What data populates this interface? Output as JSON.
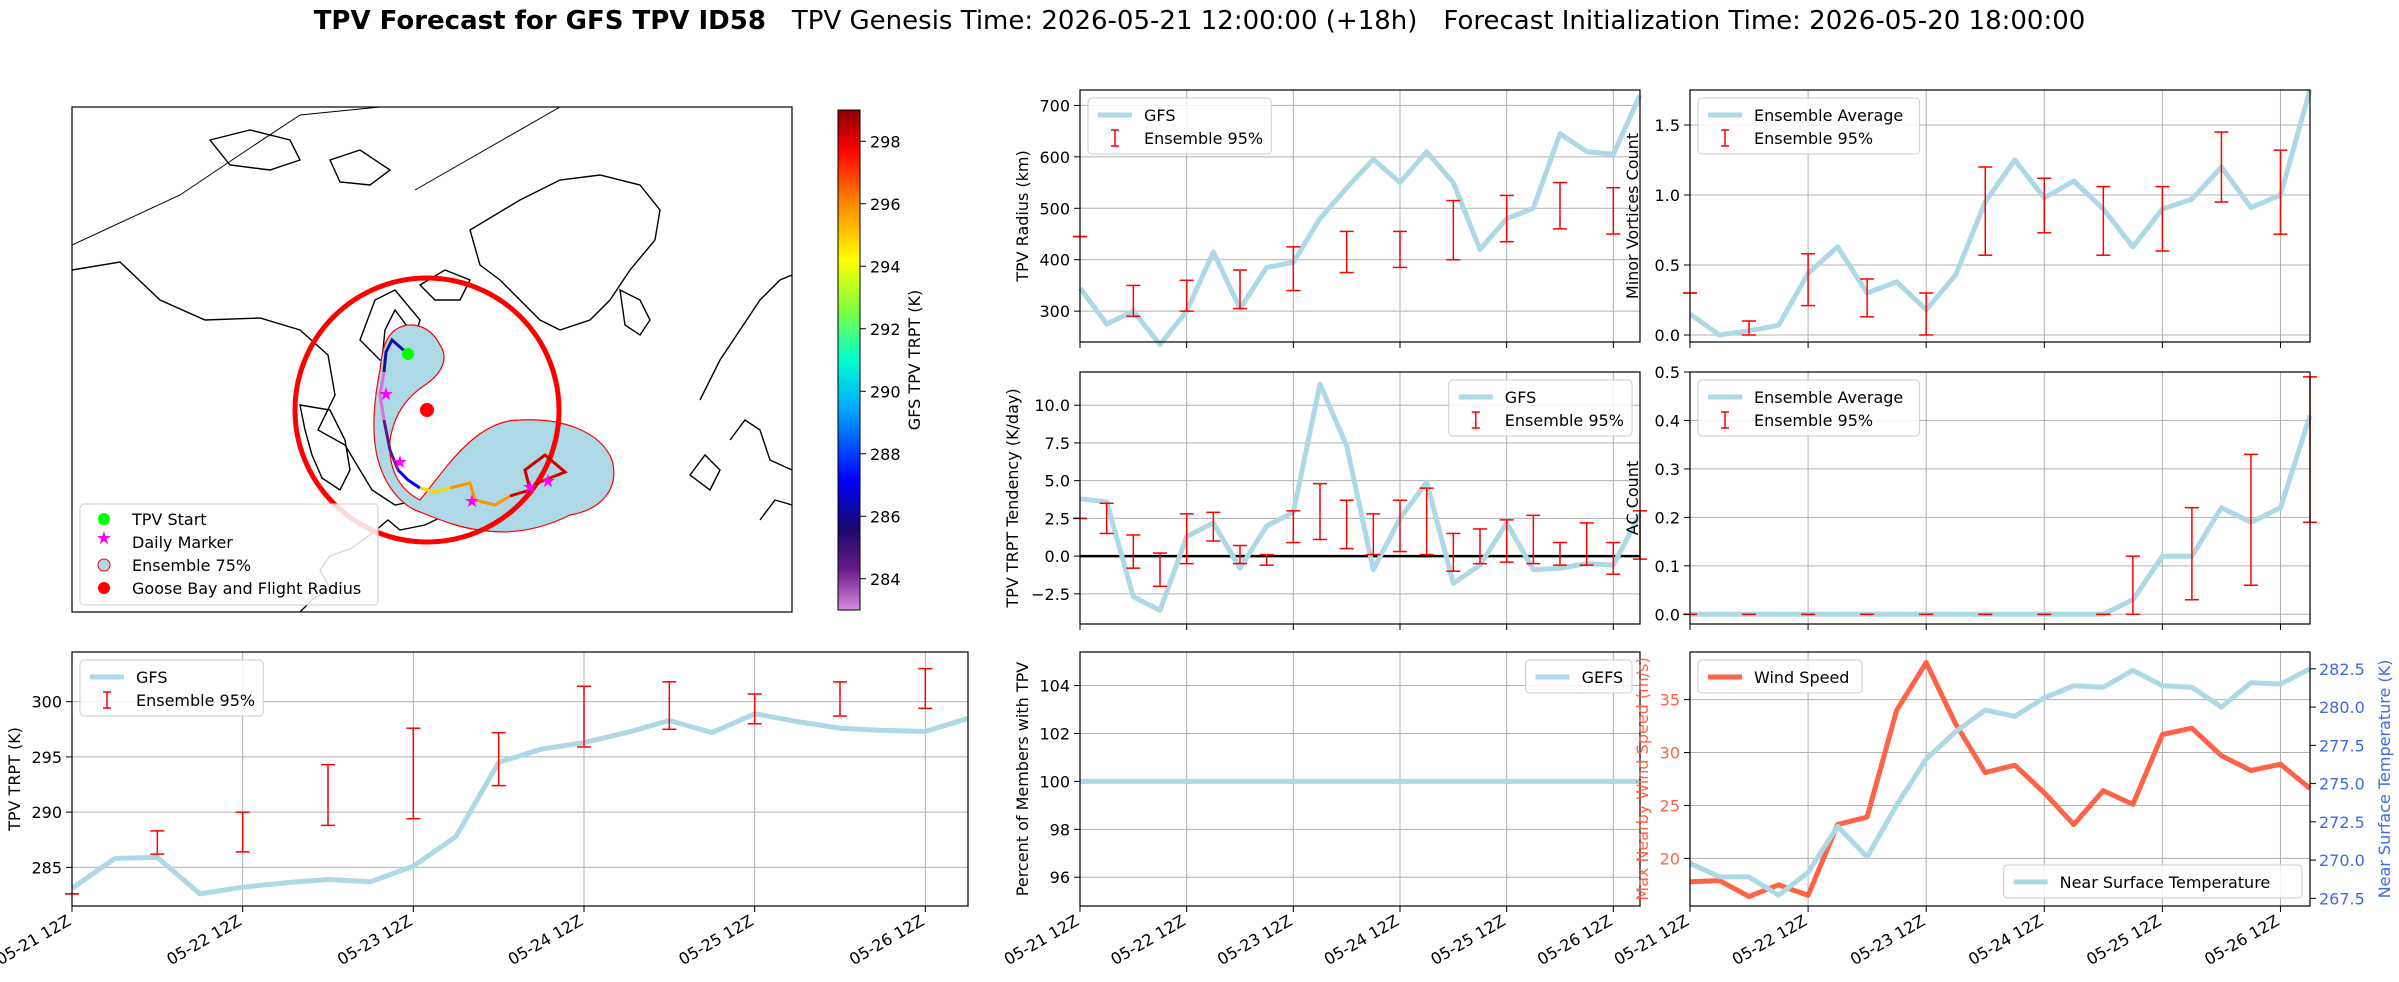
{
  "title": {
    "main": "TPV Forecast for GFS TPV ID58",
    "genesis": "TPV Genesis Time: 2026-05-21 12:00:00 (+18h)",
    "init": "Forecast Initialization Time: 2026-05-20 18:00:00"
  },
  "time_ticks": [
    "05-21 12Z",
    "05-22 12Z",
    "05-23 12Z",
    "05-24 12Z",
    "05-25 12Z",
    "05-26 12Z"
  ],
  "map": {
    "legend": [
      "TPV Start",
      "Daily Marker",
      "Ensemble 75%",
      "Goose Bay and Flight Radius"
    ],
    "colorbar_label": "GFS TPV TRPT (K)",
    "colorbar_ticks": [
      284,
      286,
      288,
      290,
      292,
      294,
      296,
      298
    ],
    "colorbar_range": [
      283,
      299
    ]
  },
  "chart_data": [
    {
      "id": "radius",
      "type": "line",
      "ylabel": "TPV Radius (km)",
      "ylim": [
        240,
        730
      ],
      "yticks": [
        300,
        400,
        500,
        600,
        700
      ],
      "series": [
        {
          "name": "GFS",
          "color": "#add8e6",
          "values": [
            345,
            275,
            300,
            235,
            300,
            415,
            305,
            385,
            395,
            480,
            540,
            595,
            550,
            610,
            550,
            420,
            480,
            500,
            645,
            610,
            605,
            720
          ]
        }
      ],
      "errorbars": {
        "name": "Ensemble 95%",
        "color": "#ff0000",
        "points": [
          [
            0,
            445,
            445
          ],
          [
            2,
            290,
            350
          ],
          [
            4,
            300,
            360
          ],
          [
            6,
            305,
            380
          ],
          [
            8,
            340,
            425
          ],
          [
            10,
            375,
            455
          ],
          [
            12,
            385,
            455
          ],
          [
            14,
            400,
            515
          ],
          [
            16,
            435,
            525
          ],
          [
            18,
            460,
            550
          ],
          [
            20,
            450,
            540
          ]
        ]
      },
      "legend": [
        "GFS",
        "Ensemble 95%"
      ]
    },
    {
      "id": "minor",
      "type": "line",
      "ylabel": "Minor Vortices Count",
      "ylim": [
        -0.05,
        1.75
      ],
      "yticks": [
        0.0,
        0.5,
        1.0,
        1.5
      ],
      "series": [
        {
          "name": "Ensemble Average",
          "color": "#add8e6",
          "values": [
            0.15,
            0.0,
            0.03,
            0.07,
            0.44,
            0.63,
            0.3,
            0.38,
            0.18,
            0.43,
            0.95,
            1.25,
            0.98,
            1.1,
            0.9,
            0.63,
            0.9,
            0.97,
            1.2,
            0.91,
            1.0,
            1.75
          ]
        }
      ],
      "errorbars": {
        "name": "Ensemble 95%",
        "color": "#ff0000",
        "points": [
          [
            0,
            0.3,
            0.3
          ],
          [
            2,
            0.0,
            0.1
          ],
          [
            4,
            0.21,
            0.58
          ],
          [
            6,
            0.13,
            0.4
          ],
          [
            8,
            0.0,
            0.3
          ],
          [
            10,
            0.57,
            1.2
          ],
          [
            12,
            0.73,
            1.12
          ],
          [
            14,
            0.57,
            1.06
          ],
          [
            16,
            0.6,
            1.06
          ],
          [
            18,
            0.95,
            1.45
          ],
          [
            20,
            0.72,
            1.32
          ]
        ]
      },
      "legend": [
        "Ensemble Average",
        "Ensemble 95%"
      ]
    },
    {
      "id": "tendency",
      "type": "line",
      "ylabel": "TPV TRPT Tendency (K/day)",
      "ylim": [
        -4.5,
        12.2
      ],
      "yticks": [
        -2.5,
        0.0,
        2.5,
        5.0,
        7.5,
        10.0
      ],
      "series": [
        {
          "name": "GFS",
          "color": "#add8e6",
          "values": [
            3.8,
            3.6,
            -2.7,
            -3.6,
            1.3,
            2.2,
            -0.8,
            2.0,
            2.9,
            11.4,
            7.3,
            -0.9,
            2.5,
            4.9,
            -1.8,
            -0.6,
            2.2,
            -0.9,
            -0.8,
            -0.5,
            -0.6,
            2.8
          ]
        }
      ],
      "errorbars": {
        "name": "Ensemble 95%",
        "color": "#ff0000",
        "points": [
          [
            0,
            2.5,
            2.5
          ],
          [
            1,
            1.5,
            3.5
          ],
          [
            2,
            -0.8,
            1.4
          ],
          [
            3,
            -2.0,
            0.2
          ],
          [
            4,
            -0.5,
            2.8
          ],
          [
            5,
            1.0,
            2.9
          ],
          [
            6,
            -0.5,
            0.7
          ],
          [
            7,
            -0.6,
            0.1
          ],
          [
            8,
            0.9,
            3.0
          ],
          [
            9,
            1.1,
            4.8
          ],
          [
            10,
            0.5,
            3.7
          ],
          [
            11,
            0.1,
            2.8
          ],
          [
            12,
            0.3,
            3.7
          ],
          [
            13,
            0.1,
            4.5
          ],
          [
            14,
            -1.0,
            1.5
          ],
          [
            15,
            -0.5,
            1.8
          ],
          [
            16,
            -0.4,
            2.4
          ],
          [
            17,
            -0.5,
            2.7
          ],
          [
            18,
            -0.6,
            0.9
          ],
          [
            19,
            -0.6,
            2.2
          ],
          [
            20,
            -1.2,
            0.9
          ],
          [
            21,
            -0.2,
            3.0
          ]
        ]
      },
      "zero_line": true,
      "legend": [
        "GFS",
        "Ensemble 95%"
      ]
    },
    {
      "id": "ac",
      "type": "line",
      "ylabel": "AC Count",
      "ylim": [
        -0.02,
        0.5
      ],
      "yticks": [
        0.0,
        0.1,
        0.2,
        0.3,
        0.4,
        0.5
      ],
      "series": [
        {
          "name": "Ensemble Average",
          "color": "#add8e6",
          "values": [
            0,
            0,
            0,
            0,
            0,
            0,
            0,
            0,
            0,
            0,
            0,
            0,
            0,
            0,
            0,
            0.03,
            0.12,
            0.12,
            0.22,
            0.19,
            0.22,
            0.41
          ]
        }
      ],
      "errorbars": {
        "name": "Ensemble 95%",
        "color": "#ff0000",
        "points": [
          [
            0,
            0,
            0
          ],
          [
            2,
            0,
            0
          ],
          [
            4,
            0,
            0
          ],
          [
            6,
            0,
            0
          ],
          [
            8,
            0,
            0
          ],
          [
            10,
            0,
            0
          ],
          [
            12,
            0,
            0
          ],
          [
            14,
            0,
            0
          ],
          [
            15,
            0,
            0.12
          ],
          [
            17,
            0.03,
            0.22
          ],
          [
            19,
            0.06,
            0.33
          ],
          [
            21,
            0.19,
            0.49
          ]
        ]
      },
      "legend": [
        "Ensemble Average",
        "Ensemble 95%"
      ]
    },
    {
      "id": "trpt",
      "type": "line",
      "ylabel": "TPV TRPT (K)",
      "ylim": [
        281.5,
        304.5
      ],
      "yticks": [
        285,
        290,
        295,
        300
      ],
      "series": [
        {
          "name": "GFS",
          "color": "#add8e6",
          "values": [
            283.1,
            285.8,
            285.9,
            282.6,
            283.2,
            283.6,
            283.9,
            283.7,
            285.1,
            287.8,
            294.5,
            295.7,
            296.3,
            297.2,
            298.3,
            297.2,
            298.9,
            298.2,
            297.6,
            297.4,
            297.3,
            298.5
          ]
        }
      ],
      "errorbars": {
        "name": "Ensemble 95%",
        "color": "#ff0000",
        "points": [
          [
            0,
            282.6,
            282.6
          ],
          [
            2,
            286.2,
            288.3
          ],
          [
            4,
            286.4,
            290.0
          ],
          [
            6,
            288.8,
            294.3
          ],
          [
            8,
            289.4,
            297.6
          ],
          [
            10,
            292.4,
            297.2
          ],
          [
            12,
            295.9,
            301.4
          ],
          [
            14,
            297.5,
            301.8
          ],
          [
            16,
            298.0,
            300.7
          ],
          [
            18,
            298.7,
            301.8
          ],
          [
            20,
            299.4,
            303.0
          ]
        ]
      },
      "legend": [
        "GFS",
        "Ensemble 95%"
      ]
    },
    {
      "id": "percent",
      "type": "line",
      "ylabel": "Percent of Members with TPV",
      "ylim": [
        94.8,
        105.4
      ],
      "yticks": [
        96,
        98,
        100,
        102,
        104
      ],
      "series": [
        {
          "name": "GEFS",
          "color": "#add8e6",
          "values": [
            100,
            100,
            100,
            100,
            100,
            100,
            100,
            100,
            100,
            100,
            100,
            100,
            100,
            100,
            100,
            100,
            100,
            100,
            100,
            100,
            100,
            100
          ]
        }
      ],
      "legend": [
        "GEFS"
      ]
    },
    {
      "id": "wind",
      "type": "line",
      "ylabel": "Max Nearby Wind Speed (m/s)",
      "ylabel_right": "Near Surface Temperature (K)",
      "ylim": [
        15.5,
        39.5
      ],
      "ylim_right": [
        267.0,
        283.6
      ],
      "yticks": [
        20,
        25,
        30,
        35
      ],
      "yticks_right": [
        267.5,
        270.0,
        272.5,
        275.0,
        277.5,
        280.0,
        282.5
      ],
      "series": [
        {
          "name": "Wind Speed",
          "axis": "left",
          "color": "#ff6347",
          "values": [
            17.8,
            17.9,
            16.4,
            17.5,
            16.5,
            23.2,
            23.9,
            34.0,
            38.5,
            32.7,
            28.1,
            28.8,
            26.2,
            23.2,
            26.4,
            25.1,
            31.7,
            32.3,
            29.7,
            28.3,
            28.9,
            26.6
          ]
        },
        {
          "name": "Near Surface Temperature",
          "axis": "right",
          "color": "#add8e6",
          "values": [
            269.8,
            268.9,
            268.9,
            267.7,
            269.2,
            272.2,
            270.2,
            273.6,
            276.6,
            278.4,
            279.8,
            279.4,
            280.6,
            281.4,
            281.3,
            282.4,
            281.4,
            281.3,
            280.0,
            281.6,
            281.5,
            282.5
          ]
        }
      ],
      "legend": [
        "Wind Speed"
      ],
      "legend_right": [
        "Near Surface Temperature"
      ]
    }
  ]
}
